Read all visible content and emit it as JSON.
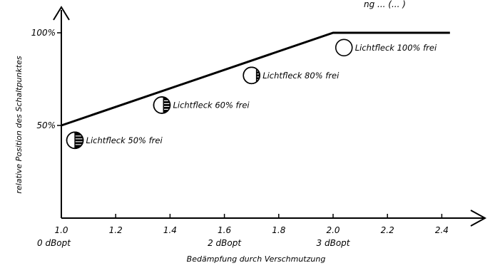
{
  "chart_data": {
    "type": "line",
    "title": "",
    "top_right_text": "ng ... (... )",
    "xlabel": "Bedämpfung durch Verschmutzung",
    "ylabel": "relative Position des Schaltpunktes",
    "xlim": [
      1.0,
      2.45
    ],
    "ylim": [
      0,
      100
    ],
    "x_ticks": [
      {
        "value": 1.0,
        "label": "1.0"
      },
      {
        "value": 1.2,
        "label": "1.2"
      },
      {
        "value": 1.4,
        "label": "1.4"
      },
      {
        "value": 1.6,
        "label": "1.6"
      },
      {
        "value": 1.8,
        "label": "1.8"
      },
      {
        "value": 2.0,
        "label": "2.0"
      },
      {
        "value": 2.2,
        "label": "2.2"
      },
      {
        "value": 2.4,
        "label": "2.4"
      }
    ],
    "x_secondary_labels": [
      {
        "value": 1.0,
        "label": "0 dBopt"
      },
      {
        "value": 1.6,
        "label": "2 dBopt"
      },
      {
        "value": 2.0,
        "label": "3 dBopt"
      }
    ],
    "y_ticks": [
      {
        "value": 50,
        "label": "50%"
      },
      {
        "value": 100,
        "label": "100%"
      }
    ],
    "grid": false,
    "series": [
      {
        "x": [
          1.0,
          2.0,
          2.43
        ],
        "y": [
          50,
          100,
          100
        ]
      }
    ],
    "annotations": [
      {
        "x": 1.05,
        "y": 42,
        "label": "Lichtfleck 50% frei",
        "free_fraction": 0.5
      },
      {
        "x": 1.37,
        "y": 61,
        "label": "Lichtfleck 60% frei",
        "free_fraction": 0.6
      },
      {
        "x": 1.7,
        "y": 77,
        "label": "Lichtfleck 80% frei",
        "free_fraction": 0.8
      },
      {
        "x": 2.04,
        "y": 92,
        "label": "Lichtfleck 100% frei",
        "free_fraction": 1.0
      }
    ]
  }
}
